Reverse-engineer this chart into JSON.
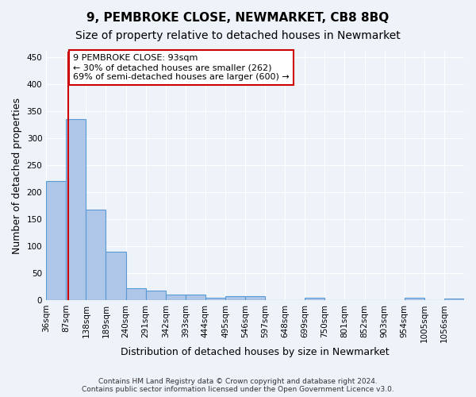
{
  "title": "9, PEMBROKE CLOSE, NEWMARKET, CB8 8BQ",
  "subtitle": "Size of property relative to detached houses in Newmarket",
  "xlabel": "Distribution of detached houses by size in Newmarket",
  "ylabel": "Number of detached properties",
  "bar_edges": [
    36,
    87,
    138,
    189,
    240,
    291,
    342,
    393,
    444,
    495,
    546,
    597,
    648,
    699,
    750,
    801,
    852,
    903,
    954,
    1005,
    1056,
    1107
  ],
  "bar_heights": [
    220,
    335,
    168,
    90,
    22,
    18,
    10,
    10,
    5,
    7,
    7,
    0,
    0,
    5,
    0,
    0,
    0,
    0,
    5,
    0,
    3
  ],
  "bar_color": "#aec6e8",
  "bar_edge_color": "#5b9bd5",
  "vline_x": 93,
  "vline_color": "#cc0000",
  "annotation_text": "9 PEMBROKE CLOSE: 93sqm\n← 30% of detached houses are smaller (262)\n69% of semi-detached houses are larger (600) →",
  "annotation_box_color": "#ffffff",
  "annotation_box_edge": "#cc0000",
  "ylim": [
    0,
    460
  ],
  "yticks": [
    0,
    50,
    100,
    150,
    200,
    250,
    300,
    350,
    400,
    450
  ],
  "footer": "Contains HM Land Registry data © Crown copyright and database right 2024.\nContains public sector information licensed under the Open Government Licence v3.0.",
  "background_color": "#eef2f9",
  "grid_color": "#ffffff",
  "title_fontsize": 11,
  "subtitle_fontsize": 10,
  "axis_fontsize": 9,
  "tick_fontsize": 7.5
}
